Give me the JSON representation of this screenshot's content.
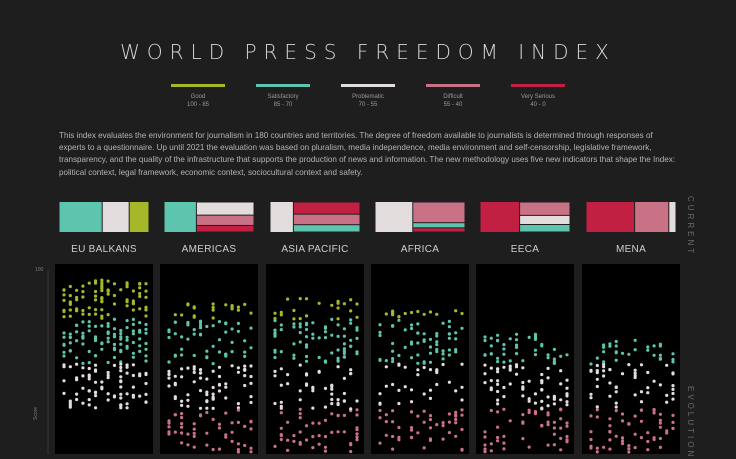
{
  "title": "WORLD PRESS FREEDOM INDEX",
  "legend": [
    {
      "label": "Good",
      "range": "100 - 85",
      "color": "#a6b82a"
    },
    {
      "label": "Satisfactory",
      "range": "85 - 70",
      "color": "#5dc4ae"
    },
    {
      "label": "Problematic",
      "range": "70 - 55",
      "color": "#e2dcdc"
    },
    {
      "label": "Difficult",
      "range": "55 - 40",
      "color": "#c97286"
    },
    {
      "label": "Very Serious",
      "range": "40 - 0",
      "color": "#c22043"
    }
  ],
  "description": "This index evaluates the environment for journalism in 180 countries and territories. The degree of freedom available to journalists is determined through responses of experts to a questionnaire. Up until 2021 the evaluation was based on pluralism, media independence, media environment and self-censorship, legislative framework, transparency, and the quality of the infrastructure that supports the production of news and information. The new methodology uses five new indicators that shape the Index: political context, legal framework, economic context, sociocultural context and safety.",
  "side_labels": {
    "current": "CURRENT",
    "evolution": "EVOLUTION"
  },
  "axis": {
    "y_max_label": "100",
    "y_title": "Score"
  },
  "chart_data": {
    "type": "treemap+strip",
    "categories": [
      "Good",
      "Satisfactory",
      "Problematic",
      "Difficult",
      "Very Serious"
    ],
    "colors": {
      "Good": "#a6b82a",
      "Satisfactory": "#5dc4ae",
      "Problematic": "#e2dcdc",
      "Difficult": "#c97286",
      "Very Serious": "#c22043"
    },
    "regions": [
      {
        "name": "EU BALKANS",
        "current_share": {
          "Satisfactory": 0.48,
          "Problematic": 0.3,
          "Good": 0.22
        },
        "evolution_columns": 14,
        "y_range": [
          55,
          98
        ]
      },
      {
        "name": "AMERICAS",
        "current_share": {
          "Satisfactory": 0.36,
          "Problematic": 0.28,
          "Difficult": 0.22,
          "Very Serious": 0.14
        },
        "evolution_columns": 14,
        "y_range": [
          20,
          90
        ]
      },
      {
        "name": "ASIA PACIFIC",
        "current_share": {
          "Problematic": 0.26,
          "Very Serious": 0.3,
          "Difficult": 0.26,
          "Satisfactory": 0.18
        },
        "evolution_columns": 14,
        "y_range": [
          20,
          92
        ]
      },
      {
        "name": "AFRICA",
        "current_share": {
          "Problematic": 0.42,
          "Difficult": 0.4,
          "Satisfactory": 0.1,
          "Very Serious": 0.08
        },
        "evolution_columns": 14,
        "y_range": [
          15,
          88
        ]
      },
      {
        "name": "EECA",
        "current_share": {
          "Very Serious": 0.44,
          "Difficult": 0.25,
          "Problematic": 0.17,
          "Satisfactory": 0.14
        },
        "evolution_columns": 14,
        "y_range": [
          20,
          80
        ]
      },
      {
        "name": "MENA",
        "current_share": {
          "Very Serious": 0.54,
          "Difficult": 0.38,
          "Problematic": 0.08
        },
        "evolution_columns": 14,
        "y_range": [
          10,
          78
        ]
      }
    ]
  }
}
